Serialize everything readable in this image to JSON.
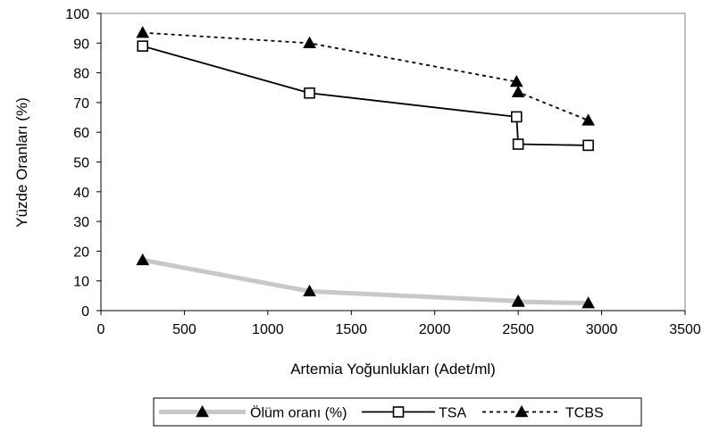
{
  "chart_data": {
    "type": "line",
    "title": "",
    "xlabel": "Artemia Yoğunlukları (Adet/ml)",
    "ylabel": "Yüzde Oranları (%)",
    "xlim": [
      0,
      3500
    ],
    "ylim": [
      0,
      100
    ],
    "x_ticks": [
      "0",
      "500",
      "1000",
      "1500",
      "2000",
      "2500",
      "3000",
      "3500"
    ],
    "y_ticks": [
      "0",
      "10",
      "20",
      "30",
      "40",
      "50",
      "60",
      "70",
      "80",
      "90",
      "100"
    ],
    "grid": false,
    "legend_position": "bottom",
    "series": [
      {
        "name": "Ölüm oranı (%)",
        "color": "#c8c8c8",
        "line_style": "solid-thick",
        "marker": "triangle",
        "points": [
          [
            250,
            17
          ],
          [
            1250,
            6.5
          ],
          [
            2500,
            3.2
          ],
          [
            2500,
            3
          ],
          [
            2920,
            2.5
          ]
        ]
      },
      {
        "name": "TSA",
        "color": "#000000",
        "line_style": "solid",
        "marker": "square-open",
        "points": [
          [
            250,
            89
          ],
          [
            1250,
            73.2
          ],
          [
            2490,
            65.2
          ],
          [
            2500,
            56
          ],
          [
            2920,
            55.6
          ]
        ]
      },
      {
        "name": "TCBS",
        "color": "#000000",
        "line_style": "dashed",
        "marker": "triangle",
        "points": [
          [
            250,
            93.5
          ],
          [
            1250,
            90
          ],
          [
            2490,
            77
          ],
          [
            2500,
            73.5
          ],
          [
            2920,
            64
          ]
        ]
      }
    ]
  }
}
